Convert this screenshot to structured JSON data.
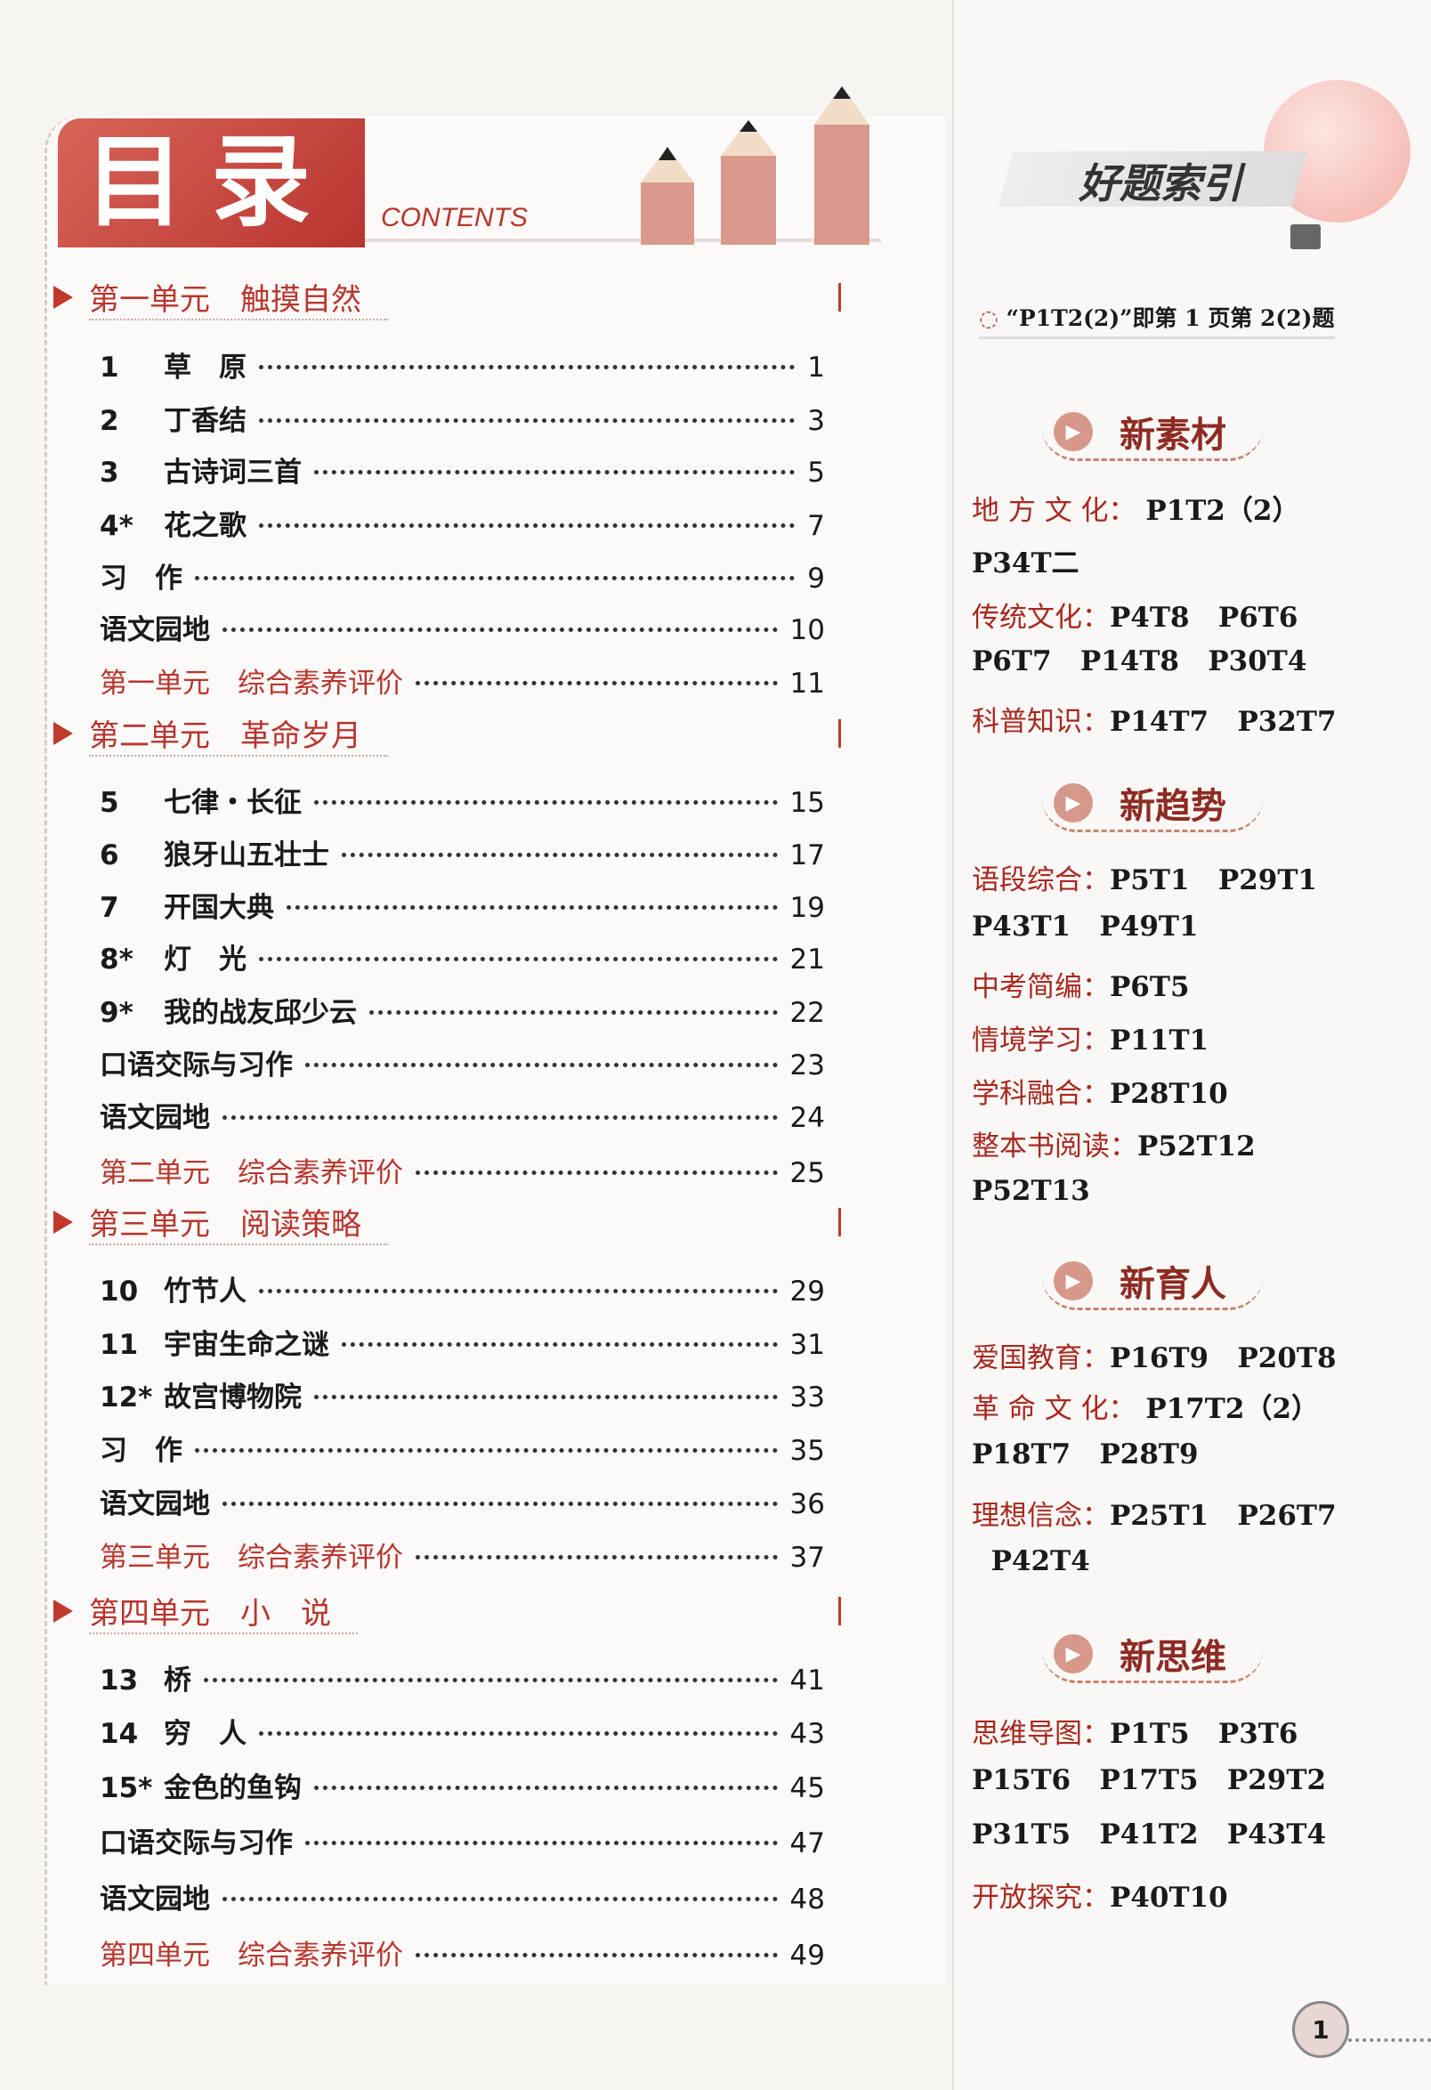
{
  "header": {
    "title": "目录",
    "subtitle": "CONTENTS"
  },
  "toc": [
    {
      "unit": "第一单元　触摸自然",
      "items": [
        {
          "num": "1",
          "title": "草　原",
          "page": "1"
        },
        {
          "num": "2",
          "title": "丁香结",
          "page": "3"
        },
        {
          "num": "3",
          "title": "古诗词三首",
          "page": "5"
        },
        {
          "num": "4*",
          "title": "花之歌",
          "page": "7"
        },
        {
          "num": "",
          "title": "习　作",
          "page": "9"
        },
        {
          "num": "",
          "title": "语文园地",
          "page": "10"
        },
        {
          "num": "",
          "title": "第一单元　综合素养评价",
          "page": "11",
          "eval": true
        }
      ]
    },
    {
      "unit": "第二单元　革命岁月",
      "items": [
        {
          "num": "5",
          "title": "七律・长征",
          "page": "15"
        },
        {
          "num": "6",
          "title": "狼牙山五壮士",
          "page": "17"
        },
        {
          "num": "7",
          "title": "开国大典",
          "page": "19"
        },
        {
          "num": "8*",
          "title": "灯　光",
          "page": "21"
        },
        {
          "num": "9*",
          "title": "我的战友邱少云",
          "page": "22"
        },
        {
          "num": "",
          "title": "口语交际与习作",
          "page": "23"
        },
        {
          "num": "",
          "title": "语文园地",
          "page": "24"
        },
        {
          "num": "",
          "title": "第二单元　综合素养评价",
          "page": "25",
          "eval": true
        }
      ]
    },
    {
      "unit": "第三单元　阅读策略",
      "items": [
        {
          "num": "10",
          "title": "竹节人",
          "page": "29"
        },
        {
          "num": "11",
          "title": "宇宙生命之谜",
          "page": "31"
        },
        {
          "num": "12*",
          "title": "故宫博物院",
          "page": "33"
        },
        {
          "num": "",
          "title": "习　作",
          "page": "35"
        },
        {
          "num": "",
          "title": "语文园地",
          "page": "36"
        },
        {
          "num": "",
          "title": "第三单元　综合素养评价",
          "page": "37",
          "eval": true
        }
      ]
    },
    {
      "unit": "第四单元　小　说",
      "items": [
        {
          "num": "13",
          "title": "桥",
          "page": "41"
        },
        {
          "num": "14",
          "title": "穷　人",
          "page": "43"
        },
        {
          "num": "15*",
          "title": "金色的鱼钩",
          "page": "45"
        },
        {
          "num": "",
          "title": "口语交际与习作",
          "page": "47"
        },
        {
          "num": "",
          "title": "语文园地",
          "page": "48"
        },
        {
          "num": "",
          "title": "第四单元　综合素养评价",
          "page": "49",
          "eval": true
        }
      ]
    }
  ],
  "index": {
    "title": "好题索引",
    "note": "“P1T2(2)”即第 1 页第 2(2)题",
    "sections": [
      {
        "title": "新素材",
        "lines": [
          {
            "label": "地 方 文 化：",
            "refs": " P1T2（2）"
          },
          {
            "label": "",
            "refs": "P34T二"
          },
          {
            "label": "传统文化：",
            "refs": "P4T8   P6T6"
          },
          {
            "label": "",
            "refs": "P6T7   P14T8   P30T4"
          },
          {
            "label": "科普知识：",
            "refs": "P14T7   P32T7"
          }
        ]
      },
      {
        "title": "新趋势",
        "lines": [
          {
            "label": "语段综合：",
            "refs": "P5T1   P29T1"
          },
          {
            "label": "",
            "refs": "P43T1   P49T1"
          },
          {
            "label": "中考简编：",
            "refs": "P6T5"
          },
          {
            "label": "情境学习：",
            "refs": "P11T1"
          },
          {
            "label": "学科融合：",
            "refs": "P28T10"
          },
          {
            "label": "整本书阅读：",
            "refs": "P52T12"
          },
          {
            "label": "",
            "refs": "P52T13"
          }
        ]
      },
      {
        "title": "新育人",
        "lines": [
          {
            "label": "爱国教育：",
            "refs": "P16T9   P20T8"
          },
          {
            "label": "革 命 文 化：",
            "refs": " P17T2（2）"
          },
          {
            "label": "",
            "refs": "P18T7   P28T9"
          },
          {
            "label": "理想信念：",
            "refs": "P25T1   P26T7"
          },
          {
            "label": "",
            "refs": "  P42T4"
          }
        ]
      },
      {
        "title": "新思维",
        "lines": [
          {
            "label": "思维导图：",
            "refs": "P1T5   P3T6"
          },
          {
            "label": "",
            "refs": "P15T6   P17T5   P29T2"
          },
          {
            "label": "",
            "refs": "P31T5   P41T2   P43T4"
          },
          {
            "label": "开放探究：",
            "refs": "P40T10"
          }
        ]
      }
    ]
  },
  "page_number": "1",
  "colors": {
    "accent": "#b8352e",
    "label": "#a8281f"
  }
}
